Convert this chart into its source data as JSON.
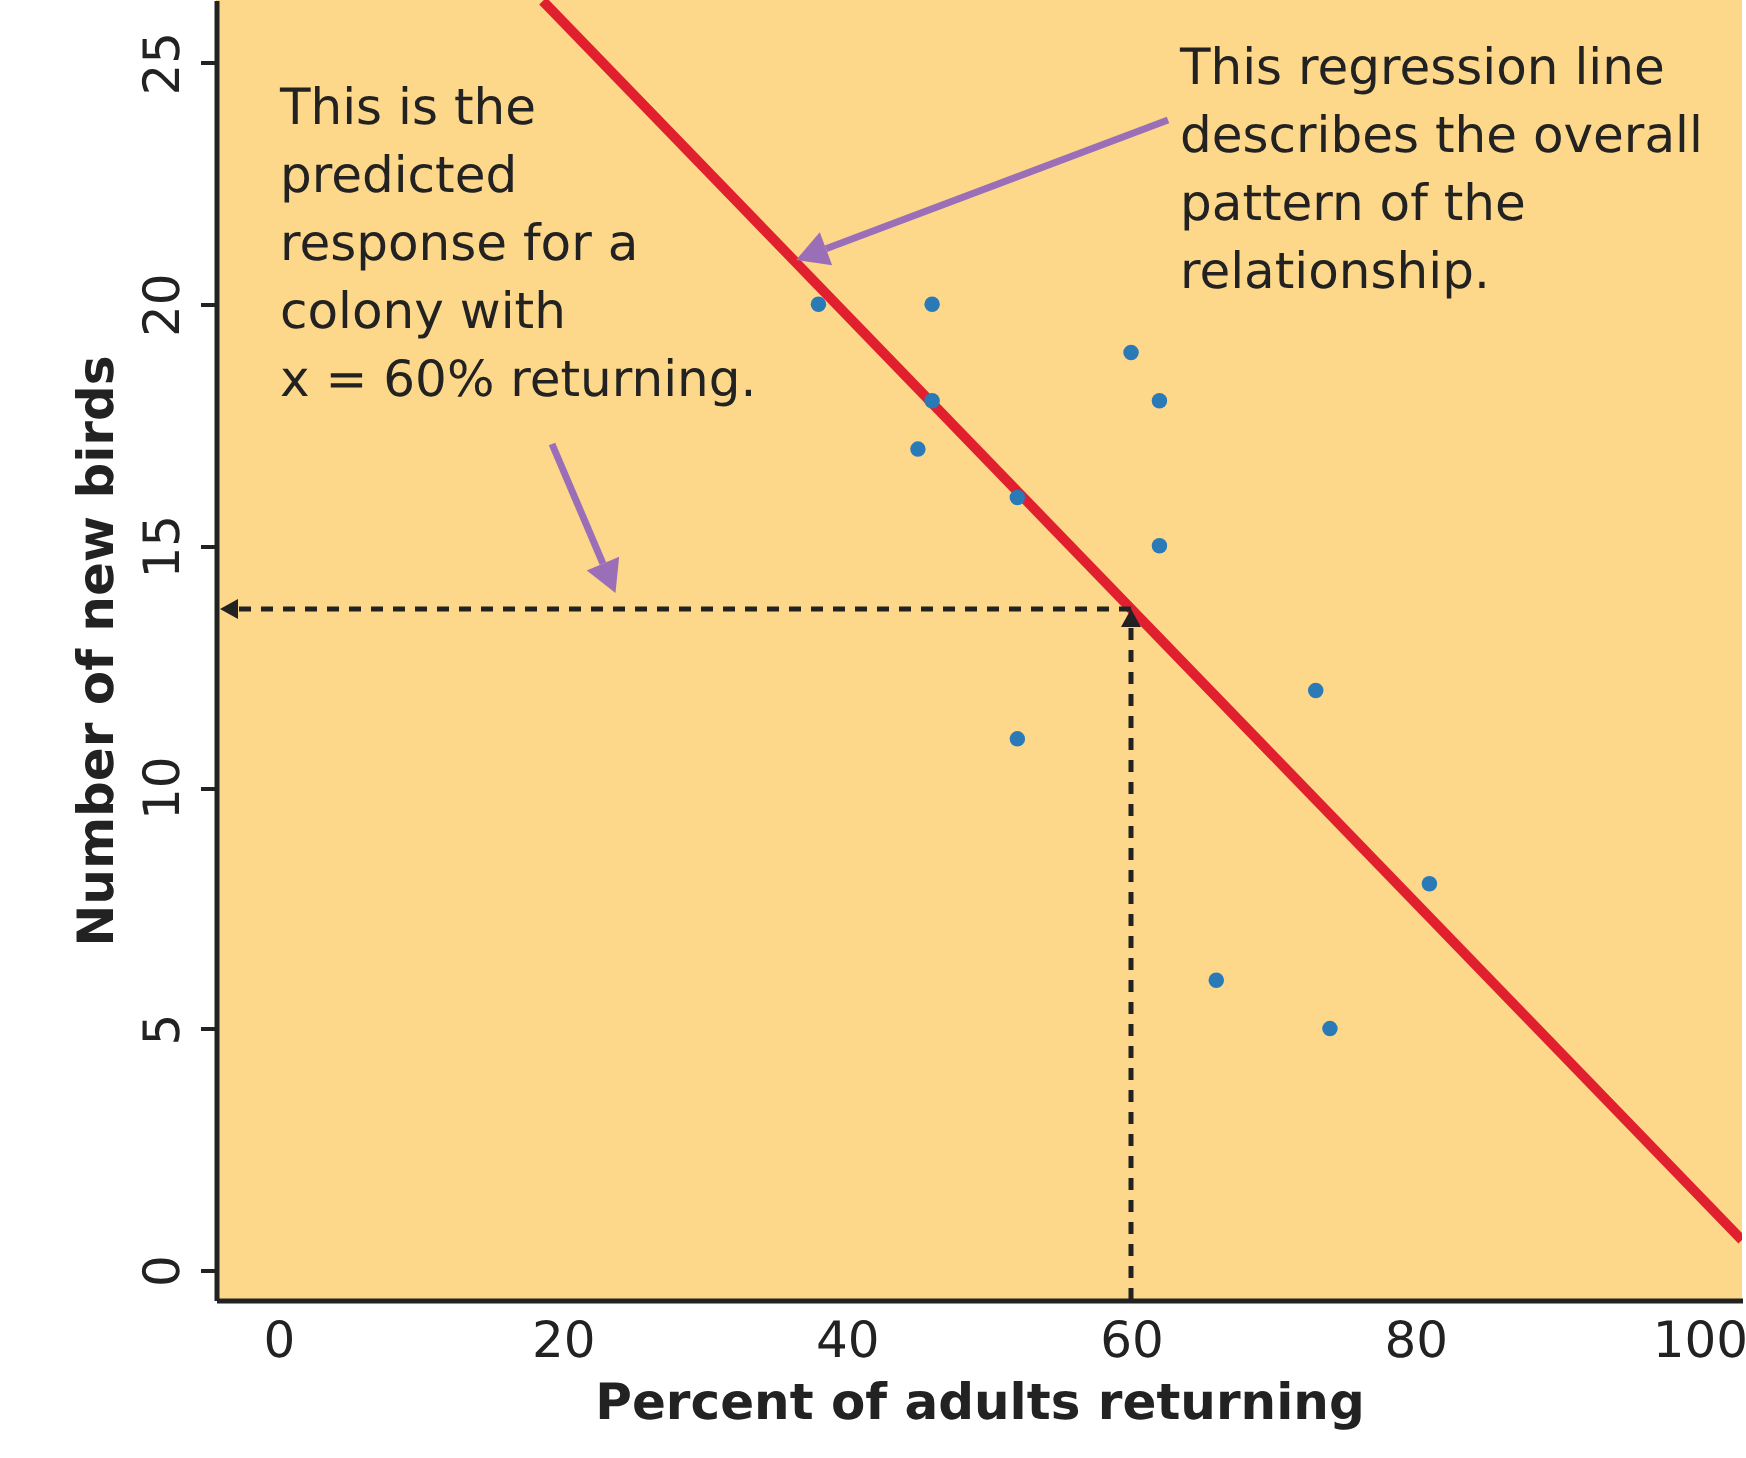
{
  "chart_data": {
    "type": "scatter",
    "xlabel": "Percent of adults returning",
    "ylabel": "Number of new birds",
    "xlim": [
      -4.4,
      103
    ],
    "ylim": [
      -0.62,
      26.3
    ],
    "xticks": [
      0,
      20,
      40,
      60,
      80,
      100
    ],
    "yticks": [
      0,
      5,
      10,
      15,
      20,
      25
    ],
    "grid": false,
    "series": [
      {
        "type": "scatter",
        "color": "#2a7ab8",
        "marker": "circle",
        "x": [
          74,
          66,
          81,
          52,
          73,
          62,
          52,
          45,
          62,
          46,
          60,
          46,
          38
        ],
        "values": [
          5,
          6,
          8,
          11,
          12,
          15,
          16,
          17,
          18,
          18,
          19,
          20,
          20
        ]
      },
      {
        "type": "line",
        "color": "#e0202f",
        "line_style": "solid",
        "x": [
          18.6,
          103
        ],
        "values": [
          26.28,
          0.62
        ]
      }
    ],
    "annotations": [
      "This is the predicted response for a colony with x = 60% returning.",
      "This regression line describes the overall pattern of the relationship."
    ]
  }
}
